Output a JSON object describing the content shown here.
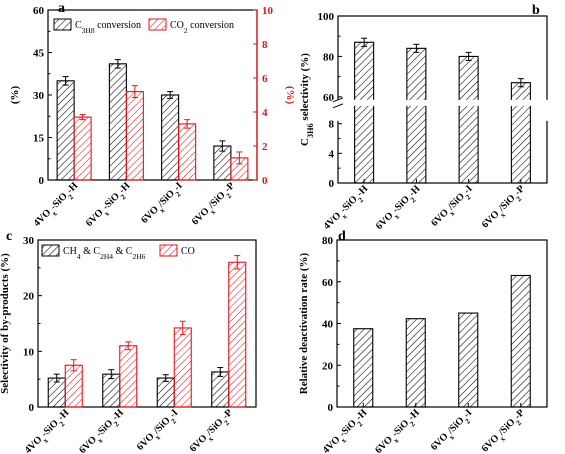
{
  "colors": {
    "black": "#000000",
    "red": "#e8141b"
  },
  "chart_data": [
    {
      "panel": "a",
      "type": "bar",
      "categories": [
        "4VO_x-SiO_2-H",
        "6VO_x-SiO_2-H",
        "6VO_x/SiO_2-I",
        "6VO_x/SiO_2-P"
      ],
      "ylabel": "(%)",
      "y2label": "(%)",
      "ylim": [
        0,
        60
      ],
      "yticks": [
        0,
        15,
        30,
        45,
        60
      ],
      "y2lim": [
        0,
        10
      ],
      "y2ticks": [
        0,
        2,
        4,
        6,
        8,
        10
      ],
      "series": [
        {
          "name": "C_3H_8 conversion",
          "axis": "left",
          "color": "#000000",
          "values": [
            35,
            41,
            30,
            12
          ],
          "errors": [
            1.5,
            1.5,
            1.2,
            1.8
          ]
        },
        {
          "name": "CO_2 conversion",
          "axis": "right",
          "color": "#e8141b",
          "values": [
            3.7,
            5.2,
            3.3,
            1.3
          ],
          "errors": [
            0.15,
            0.35,
            0.25,
            0.35
          ]
        }
      ]
    },
    {
      "panel": "b",
      "type": "bar",
      "categories": [
        "4VO_x-SiO_2-H",
        "6VO_x-SiO_2-H",
        "6VO_x/SiO_2-I",
        "6VO_x/SiO_2-P"
      ],
      "ylabel": "C_3H_6 selectivity (%)",
      "ylim": [
        0,
        100
      ],
      "axis_break": [
        10,
        60
      ],
      "yticks": [
        0,
        4,
        8,
        60,
        80,
        100
      ],
      "series": [
        {
          "color": "#000000",
          "values": [
            87,
            84,
            80,
            67
          ],
          "errors": [
            2,
            2,
            2,
            2
          ]
        }
      ]
    },
    {
      "panel": "c",
      "type": "bar",
      "categories": [
        "4VO_x-SiO_2-H",
        "6VO_x-SiO_2-H",
        "6VO_x/SiO_2-I",
        "6VO_x/SiO_2-P"
      ],
      "ylabel": "Selectivity of by-products (%)",
      "ylim": [
        0,
        30
      ],
      "yticks": [
        0,
        10,
        20,
        30
      ],
      "series": [
        {
          "name": "CH_4 & C_2H_4 & C_2H_6",
          "color": "#000000",
          "values": [
            5.2,
            5.9,
            5.2,
            6.3
          ],
          "errors": [
            0.7,
            0.8,
            0.6,
            0.8
          ]
        },
        {
          "name": "CO",
          "color": "#e8141b",
          "values": [
            7.5,
            11.0,
            14.2,
            26.0
          ],
          "errors": [
            1.0,
            0.7,
            1.2,
            1.2
          ]
        }
      ]
    },
    {
      "panel": "d",
      "type": "bar",
      "categories": [
        "4VO_x-SiO_2-H",
        "6VO_x-SiO_2-H",
        "6VO_x/SiO_2-I",
        "6VO_x/SiO_2-P"
      ],
      "ylabel": "Relative deactivation rate (%)",
      "ylim": [
        0,
        80
      ],
      "yticks": [
        0,
        20,
        40,
        60,
        80
      ],
      "series": [
        {
          "color": "#000000",
          "values": [
            37.5,
            42.3,
            45.0,
            63.0
          ]
        }
      ]
    }
  ]
}
